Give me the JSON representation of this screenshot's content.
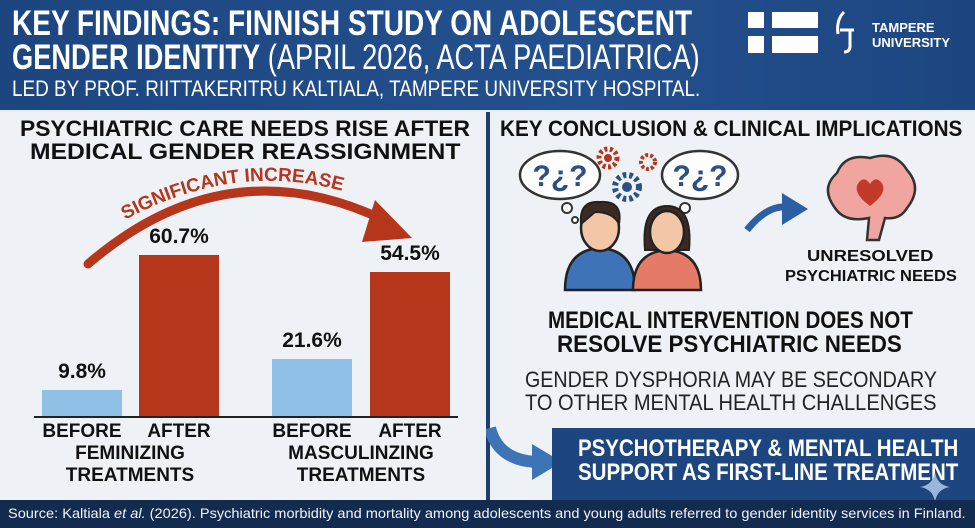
{
  "header": {
    "title_line1": "KEY FINDINGS: FINNISH STUDY ON ADOLESCENT",
    "title_line2_bold": "GENDER IDENTITY",
    "title_line2_light": "(APRIL 2026, ACTA PAEDIATRICA)",
    "subtitle": "LED BY PROF. RIITTAKERITRU KALTIALA, TAMPERE UNIVERSITY HOSPITAL.",
    "logo_line1": "TAMPERE",
    "logo_line2": "UNIVERSITY",
    "flag_icon": "finland-flag-icon"
  },
  "left_panel": {
    "title_line1": "PSYCHIATRIC CARE NEEDS RISE AFTER",
    "title_line2": "MEDICAL GENDER REASSIGNMENT",
    "arrow_label": "SIGNIFICANT INCREASE"
  },
  "chart_data": {
    "type": "bar",
    "groups": [
      "FEMINIZING TREATMENTS",
      "MASCULINZING TREATMENTS"
    ],
    "group_lines": [
      [
        "FEMINIZING",
        "TREATMENTS"
      ],
      [
        "MASCULINZING",
        "TREATMENTS"
      ]
    ],
    "categories": [
      "BEFORE",
      "AFTER",
      "BEFORE",
      "AFTER"
    ],
    "values": [
      9.8,
      60.7,
      21.6,
      54.5
    ],
    "labels": [
      "9.8%",
      "60.7%",
      "21.6%",
      "54.5%"
    ],
    "unit": "%",
    "ylim": [
      0,
      70
    ],
    "grid": false,
    "colors": {
      "before": "#8fc0e6",
      "after": "#b5361b"
    }
  },
  "right_panel": {
    "title": "KEY CONCLUSION & CLINICAL IMPLICATIONS",
    "icons": [
      "question-thought-bubble-icon",
      "gear-icon",
      "people-icon",
      "arrow-right-icon",
      "brain-heart-icon"
    ],
    "brain_caption_line1": "UNRESOLVED",
    "brain_caption_line2": "PSYCHIATRIC NEEDS",
    "conclusion_line1": "MEDICAL INTERVENTION DOES NOT",
    "conclusion_line2": "RESOLVE PSYCHIATRIC NEEDS",
    "note_line1": "GENDER DYSPHORIA MAY BE SECONDARY",
    "note_line2": "TO OTHER MENTAL HEALTH CHALLENGES",
    "callout_line1": "PSYCHOTHERAPY & MENTAL HEALTH",
    "callout_line2": "SUPPORT AS FIRST-LINE TREATMENT"
  },
  "footer": {
    "source_prefix": "Source: Kaltiala ",
    "source_italic": "et al.",
    "source_rest": " (2026). Psychiatric morbidity and mortality among adolescents and young adults referred to gender identity services in Finland."
  },
  "colors": {
    "header": "#1f4a85",
    "footer": "#132b4f",
    "accent_red": "#b5361b",
    "accent_blue": "#8fc0e6"
  }
}
